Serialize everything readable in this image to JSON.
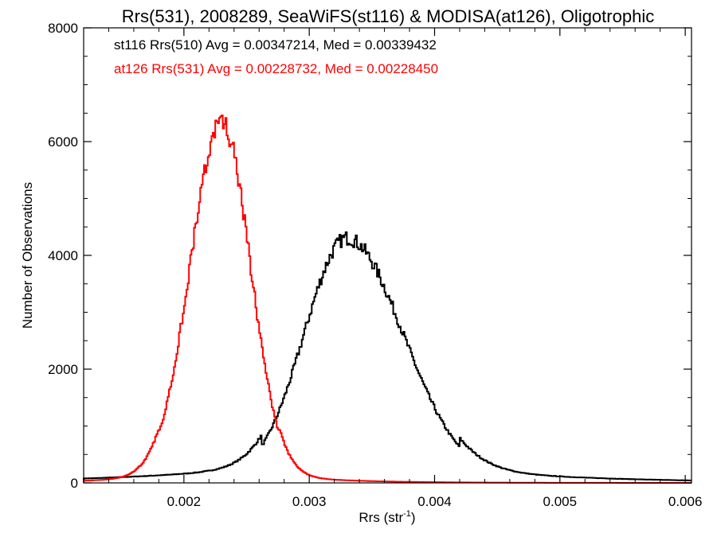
{
  "chart_data": {
    "type": "histogram-step",
    "title": "Rrs(531), 2008289, SeaWiFS(st116) & MODISA(at126), Oligotrophic",
    "xlabel": {
      "prefix": "Rrs (str",
      "sup": "-1",
      "suffix": ")"
    },
    "ylabel": "Number of Observations",
    "xlim": [
      0.0012,
      0.00605
    ],
    "ylim": [
      0,
      8000
    ],
    "x_ticks": [
      0.002,
      0.003,
      0.004,
      0.005,
      0.006
    ],
    "x_tick_labels": [
      "0.002",
      "0.003",
      "0.004",
      "0.005",
      "0.006"
    ],
    "y_ticks": [
      0,
      2000,
      4000,
      6000,
      8000
    ],
    "y_tick_labels": [
      "0",
      "2000",
      "4000",
      "6000",
      "8000"
    ],
    "grid": false,
    "legend_position": "top-left",
    "series": [
      {
        "name": "st116",
        "label": "st116 Rrs(510) Avg = 0.00347214, Med = 0.00339432",
        "color": "#000000",
        "mode": "M",
        "mean": 0.0033,
        "peak": 4150,
        "sigma_left": 0.00034,
        "sigma_right": 0.00045,
        "tail_amp": 520,
        "tail_sigma": 0.0011
      },
      {
        "name": "at126",
        "label": "at126 Rrs(531) Avg = 0.00228732, Med = 0.00228450",
        "color": "#ff0000",
        "mode": "M",
        "mean": 0.0023,
        "peak": 6250,
        "sigma_left": 0.00025,
        "sigma_right": 0.00023,
        "tail_amp": 280,
        "tail_sigma": 0.00055
      }
    ]
  }
}
